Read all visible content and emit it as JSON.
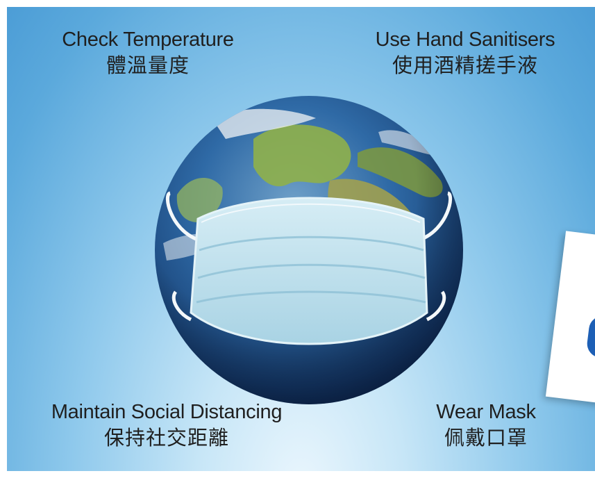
{
  "captions": {
    "top_left": {
      "en": "Check Temperature",
      "zh": "體溫量度"
    },
    "top_right": {
      "en": "Use Hand Sanitisers",
      "zh": "使用酒精搓手液"
    },
    "bottom_left": {
      "en": "Maintain Social Distancing",
      "zh": "保持社交距離"
    },
    "bottom_right": {
      "en": "Wear Mask",
      "zh": "佩戴口罩"
    }
  },
  "illustration": {
    "subject": "globe-wearing-surgical-mask-icon",
    "colors": {
      "ocean": "#1e4e8c",
      "land": "#8fb04a",
      "mask": "#bfe0ec",
      "background": "#8fc9ec"
    }
  }
}
